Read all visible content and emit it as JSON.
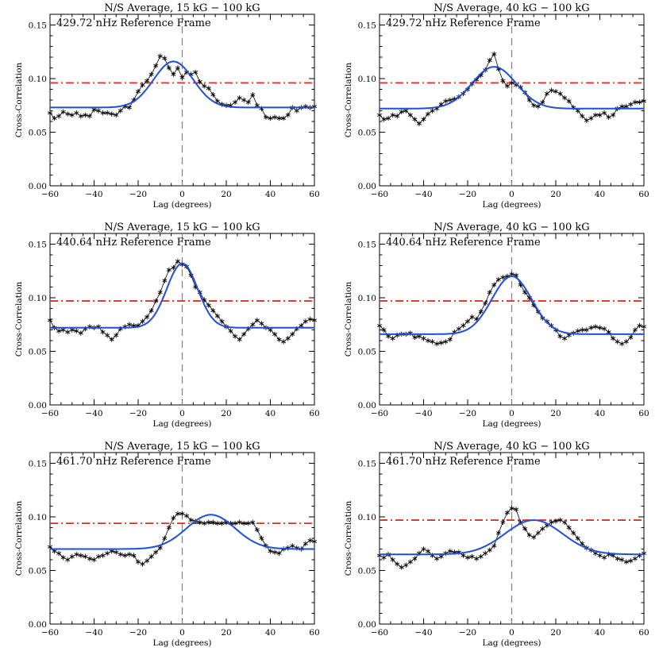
{
  "chart_data": [
    {
      "type": "line",
      "title": "N/S Average, 15 kG − 100 kG",
      "annotation": "429.72 nHz Reference Frame",
      "xlabel": "Lag (degrees)",
      "ylabel": "Cross-Correlation",
      "xlim": [
        -60,
        60
      ],
      "ylim": [
        0,
        0.16
      ],
      "xticks": [
        "−60",
        "−40",
        "−20",
        "0",
        "20",
        "40",
        "60"
      ],
      "yticks": [
        "0.00",
        "0.05",
        "0.10",
        "0.15"
      ],
      "threshold": 0.096,
      "gaussian": {
        "baseline": 0.073,
        "amplitude": 0.043,
        "center": -4,
        "sigma": 9
      },
      "colors": {
        "data": "#000000",
        "fit": "#1f4fd8",
        "threshold": "#e0301e",
        "zero": "#808080"
      },
      "series": [
        {
          "x": [
            -60,
            -58,
            -56,
            -54,
            -52,
            -50,
            -48,
            -46,
            -44,
            -42,
            -40,
            -38,
            -36,
            -34,
            -32,
            -30,
            -28,
            -26,
            -24,
            -22,
            -20,
            -18,
            -16,
            -14,
            -12,
            -10,
            -8,
            -6,
            -4,
            -2,
            0,
            2,
            4,
            6,
            8,
            10,
            12,
            14,
            16,
            18,
            20,
            22,
            24,
            26,
            28,
            30,
            32,
            34,
            36,
            38,
            40,
            42,
            44,
            46,
            48,
            50,
            52,
            54,
            56,
            58,
            60
          ],
          "y": [
            0.068,
            0.063,
            0.065,
            0.069,
            0.067,
            0.066,
            0.068,
            0.065,
            0.066,
            0.065,
            0.071,
            0.07,
            0.068,
            0.068,
            0.067,
            0.066,
            0.07,
            0.074,
            0.073,
            0.08,
            0.088,
            0.094,
            0.098,
            0.104,
            0.112,
            0.121,
            0.119,
            0.11,
            0.104,
            0.11,
            0.101,
            0.106,
            0.104,
            0.106,
            0.097,
            0.093,
            0.091,
            0.085,
            0.079,
            0.076,
            0.075,
            0.075,
            0.078,
            0.082,
            0.08,
            0.078,
            0.085,
            0.075,
            0.072,
            0.064,
            0.063,
            0.064,
            0.063,
            0.063,
            0.066,
            0.073,
            0.07,
            0.073,
            0.074,
            0.073,
            0.074
          ]
        }
      ]
    },
    {
      "type": "line",
      "title": "N/S Average, 40 kG − 100 kG",
      "annotation": "429.72 nHz Reference Frame",
      "xlabel": "Lag (degrees)",
      "ylabel": "Cross-Correlation",
      "xlim": [
        -60,
        60
      ],
      "ylim": [
        0,
        0.16
      ],
      "xticks": [
        "−60",
        "−40",
        "−20",
        "0",
        "20",
        "40",
        "60"
      ],
      "yticks": [
        "0.00",
        "0.05",
        "0.10",
        "0.15"
      ],
      "threshold": 0.096,
      "gaussian": {
        "baseline": 0.072,
        "amplitude": 0.039,
        "center": -8,
        "sigma": 10
      },
      "colors": {
        "data": "#000000",
        "fit": "#1f4fd8",
        "threshold": "#e0301e",
        "zero": "#808080"
      },
      "series": [
        {
          "x": [
            -60,
            -58,
            -56,
            -54,
            -52,
            -50,
            -48,
            -46,
            -44,
            -42,
            -40,
            -38,
            -36,
            -34,
            -32,
            -30,
            -28,
            -26,
            -24,
            -22,
            -20,
            -18,
            -16,
            -14,
            -12,
            -10,
            -8,
            -6,
            -4,
            -2,
            0,
            2,
            4,
            6,
            8,
            10,
            12,
            14,
            16,
            18,
            20,
            22,
            24,
            26,
            28,
            30,
            32,
            34,
            36,
            38,
            40,
            42,
            44,
            46,
            48,
            50,
            52,
            54,
            56,
            58,
            60
          ],
          "y": [
            0.066,
            0.062,
            0.063,
            0.066,
            0.065,
            0.069,
            0.07,
            0.066,
            0.062,
            0.058,
            0.062,
            0.067,
            0.07,
            0.072,
            0.076,
            0.079,
            0.08,
            0.081,
            0.083,
            0.086,
            0.09,
            0.095,
            0.099,
            0.103,
            0.108,
            0.117,
            0.123,
            0.109,
            0.098,
            0.093,
            0.096,
            0.094,
            0.092,
            0.087,
            0.08,
            0.075,
            0.074,
            0.078,
            0.086,
            0.089,
            0.088,
            0.086,
            0.082,
            0.079,
            0.073,
            0.07,
            0.065,
            0.061,
            0.063,
            0.066,
            0.066,
            0.068,
            0.064,
            0.066,
            0.072,
            0.074,
            0.074,
            0.076,
            0.078,
            0.078,
            0.079
          ]
        }
      ]
    },
    {
      "type": "line",
      "title": "N/S Average, 15 kG − 100 kG",
      "annotation": "440.64 nHz Reference Frame",
      "xlabel": "Lag (degrees)",
      "ylabel": "Cross-Correlation",
      "xlim": [
        -60,
        60
      ],
      "ylim": [
        0,
        0.16
      ],
      "xticks": [
        "−60",
        "−40",
        "−20",
        "0",
        "20",
        "40",
        "60"
      ],
      "yticks": [
        "0.00",
        "0.05",
        "0.10",
        "0.15"
      ],
      "threshold": 0.097,
      "gaussian": {
        "baseline": 0.072,
        "amplitude": 0.06,
        "center": 0,
        "sigma": 7
      },
      "colors": {
        "data": "#000000",
        "fit": "#1f4fd8",
        "threshold": "#e0301e",
        "zero": "#808080"
      },
      "series": [
        {
          "x": [
            -60,
            -58,
            -56,
            -54,
            -52,
            -50,
            -48,
            -46,
            -44,
            -42,
            -40,
            -38,
            -36,
            -34,
            -32,
            -30,
            -28,
            -26,
            -24,
            -22,
            -20,
            -18,
            -16,
            -14,
            -12,
            -10,
            -8,
            -6,
            -4,
            -2,
            0,
            2,
            4,
            6,
            8,
            10,
            12,
            14,
            16,
            18,
            20,
            22,
            24,
            26,
            28,
            30,
            32,
            34,
            36,
            38,
            40,
            42,
            44,
            46,
            48,
            50,
            52,
            54,
            56,
            58,
            60
          ],
          "y": [
            0.079,
            0.072,
            0.069,
            0.07,
            0.068,
            0.07,
            0.069,
            0.067,
            0.071,
            0.073,
            0.072,
            0.073,
            0.068,
            0.065,
            0.061,
            0.065,
            0.071,
            0.073,
            0.075,
            0.074,
            0.074,
            0.078,
            0.082,
            0.088,
            0.097,
            0.105,
            0.116,
            0.126,
            0.128,
            0.134,
            0.131,
            0.129,
            0.121,
            0.11,
            0.105,
            0.098,
            0.093,
            0.088,
            0.083,
            0.078,
            0.073,
            0.069,
            0.064,
            0.061,
            0.066,
            0.071,
            0.075,
            0.079,
            0.076,
            0.072,
            0.07,
            0.066,
            0.061,
            0.059,
            0.062,
            0.066,
            0.071,
            0.074,
            0.078,
            0.08,
            0.079
          ]
        }
      ]
    },
    {
      "type": "line",
      "title": "N/S Average, 40 kG − 100 kG",
      "annotation": "440.64 nHz Reference Frame",
      "xlabel": "Lag (degrees)",
      "ylabel": "Cross-Correlation",
      "xlim": [
        -60,
        60
      ],
      "ylim": [
        0,
        0.16
      ],
      "xticks": [
        "−60",
        "−40",
        "−20",
        "0",
        "20",
        "40",
        "60"
      ],
      "yticks": [
        "0.00",
        "0.05",
        "0.10",
        "0.15"
      ],
      "threshold": 0.097,
      "gaussian": {
        "baseline": 0.066,
        "amplitude": 0.054,
        "center": 0,
        "sigma": 9
      },
      "colors": {
        "data": "#000000",
        "fit": "#1f4fd8",
        "threshold": "#e0301e",
        "zero": "#808080"
      },
      "series": [
        {
          "x": [
            -60,
            -58,
            -56,
            -54,
            -52,
            -50,
            -48,
            -46,
            -44,
            -42,
            -40,
            -38,
            -36,
            -34,
            -32,
            -30,
            -28,
            -26,
            -24,
            -22,
            -20,
            -18,
            -16,
            -14,
            -12,
            -10,
            -8,
            -6,
            -4,
            -2,
            0,
            2,
            4,
            6,
            8,
            10,
            12,
            14,
            16,
            18,
            20,
            22,
            24,
            26,
            28,
            30,
            32,
            34,
            36,
            38,
            40,
            42,
            44,
            46,
            48,
            50,
            52,
            54,
            56,
            58,
            60
          ],
          "y": [
            0.074,
            0.07,
            0.064,
            0.062,
            0.065,
            0.066,
            0.066,
            0.067,
            0.063,
            0.064,
            0.062,
            0.06,
            0.059,
            0.057,
            0.058,
            0.059,
            0.061,
            0.068,
            0.071,
            0.074,
            0.078,
            0.082,
            0.08,
            0.087,
            0.095,
            0.105,
            0.112,
            0.117,
            0.119,
            0.12,
            0.122,
            0.121,
            0.112,
            0.105,
            0.1,
            0.093,
            0.087,
            0.081,
            0.078,
            0.074,
            0.07,
            0.064,
            0.062,
            0.065,
            0.067,
            0.069,
            0.07,
            0.07,
            0.072,
            0.073,
            0.072,
            0.071,
            0.068,
            0.062,
            0.059,
            0.057,
            0.059,
            0.063,
            0.07,
            0.074,
            0.073
          ]
        }
      ]
    },
    {
      "type": "line",
      "title": "N/S Average, 15 kG − 100 kG",
      "annotation": "461.70 nHz Reference Frame",
      "xlabel": "Lag (degrees)",
      "ylabel": "Cross-Correlation",
      "xlim": [
        -60,
        60
      ],
      "ylim": [
        0,
        0.16
      ],
      "xticks": [
        "−60",
        "−40",
        "−20",
        "0",
        "20",
        "40",
        "60"
      ],
      "yticks": [
        "0.00",
        "0.05",
        "0.10",
        "0.15"
      ],
      "threshold": 0.094,
      "gaussian": {
        "baseline": 0.07,
        "amplitude": 0.032,
        "center": 13,
        "sigma": 11
      },
      "colors": {
        "data": "#000000",
        "fit": "#1f4fd8",
        "threshold": "#e0301e",
        "zero": "#808080"
      },
      "series": [
        {
          "x": [
            -60,
            -58,
            -56,
            -54,
            -52,
            -50,
            -48,
            -46,
            -44,
            -42,
            -40,
            -38,
            -36,
            -34,
            -32,
            -30,
            -28,
            -26,
            -24,
            -22,
            -20,
            -18,
            -16,
            -14,
            -12,
            -10,
            -8,
            -6,
            -4,
            -2,
            0,
            2,
            4,
            6,
            8,
            10,
            12,
            14,
            16,
            18,
            20,
            22,
            24,
            26,
            28,
            30,
            32,
            34,
            36,
            38,
            40,
            42,
            44,
            46,
            48,
            50,
            52,
            54,
            56,
            58,
            60
          ],
          "y": [
            0.072,
            0.068,
            0.066,
            0.062,
            0.06,
            0.063,
            0.065,
            0.064,
            0.063,
            0.061,
            0.06,
            0.063,
            0.064,
            0.066,
            0.068,
            0.067,
            0.065,
            0.064,
            0.065,
            0.064,
            0.058,
            0.056,
            0.059,
            0.063,
            0.067,
            0.071,
            0.08,
            0.09,
            0.099,
            0.103,
            0.103,
            0.101,
            0.097,
            0.096,
            0.095,
            0.094,
            0.095,
            0.095,
            0.094,
            0.094,
            0.095,
            0.094,
            0.094,
            0.095,
            0.094,
            0.094,
            0.095,
            0.088,
            0.08,
            0.073,
            0.068,
            0.067,
            0.066,
            0.07,
            0.071,
            0.073,
            0.071,
            0.07,
            0.075,
            0.078,
            0.077
          ]
        }
      ]
    },
    {
      "type": "line",
      "title": "N/S Average, 40 kG − 100 kG",
      "annotation": "461.70 nHz Reference Frame",
      "xlabel": "Lag (degrees)",
      "ylabel": "Cross-Correlation",
      "xlim": [
        -60,
        60
      ],
      "ylim": [
        0,
        0.16
      ],
      "xticks": [
        "−60",
        "−40",
        "−20",
        "0",
        "20",
        "40",
        "60"
      ],
      "yticks": [
        "0.00",
        "0.05",
        "0.10",
        "0.15"
      ],
      "threshold": 0.097,
      "gaussian": {
        "baseline": 0.065,
        "amplitude": 0.032,
        "center": 10,
        "sigma": 13
      },
      "colors": {
        "data": "#000000",
        "fit": "#1f4fd8",
        "threshold": "#e0301e",
        "zero": "#808080"
      },
      "series": [
        {
          "x": [
            -60,
            -58,
            -56,
            -54,
            -52,
            -50,
            -48,
            -46,
            -44,
            -42,
            -40,
            -38,
            -36,
            -34,
            -32,
            -30,
            -28,
            -26,
            -24,
            -22,
            -20,
            -18,
            -16,
            -14,
            -12,
            -10,
            -8,
            -6,
            -4,
            -2,
            0,
            2,
            4,
            6,
            8,
            10,
            12,
            14,
            16,
            18,
            20,
            22,
            24,
            26,
            28,
            30,
            32,
            34,
            36,
            38,
            40,
            42,
            44,
            46,
            48,
            50,
            52,
            54,
            56,
            58,
            60
          ],
          "y": [
            0.064,
            0.062,
            0.065,
            0.06,
            0.056,
            0.053,
            0.055,
            0.058,
            0.061,
            0.066,
            0.07,
            0.068,
            0.064,
            0.061,
            0.063,
            0.066,
            0.068,
            0.067,
            0.067,
            0.064,
            0.062,
            0.063,
            0.061,
            0.063,
            0.066,
            0.069,
            0.073,
            0.085,
            0.095,
            0.104,
            0.108,
            0.107,
            0.095,
            0.089,
            0.083,
            0.081,
            0.085,
            0.089,
            0.092,
            0.095,
            0.096,
            0.097,
            0.095,
            0.09,
            0.085,
            0.08,
            0.075,
            0.071,
            0.069,
            0.066,
            0.064,
            0.062,
            0.065,
            0.064,
            0.061,
            0.06,
            0.058,
            0.059,
            0.061,
            0.064,
            0.066
          ]
        }
      ]
    }
  ]
}
